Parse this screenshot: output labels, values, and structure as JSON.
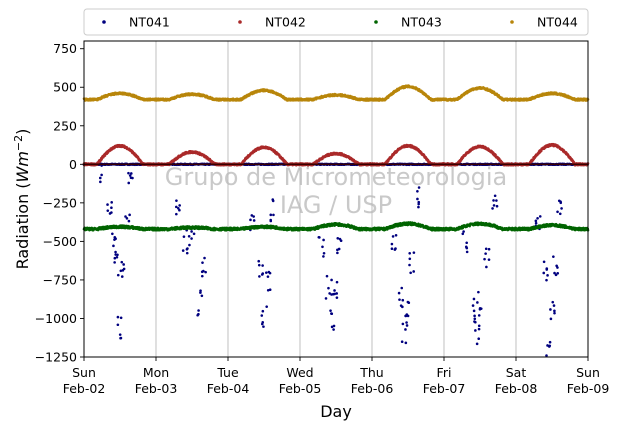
{
  "chart_data": {
    "type": "scatter",
    "xlabel": "Day",
    "ylabel_main": "Radiation (",
    "ylabel_unit": "Wm",
    "ylabel_exp": "−2",
    "ylabel_close": ")",
    "ylim": [
      -1250,
      800
    ],
    "yticks": [
      -1250,
      -1000,
      -750,
      -500,
      -250,
      0,
      250,
      500,
      750
    ],
    "ytick_labels": [
      "−1250",
      "−1000",
      "−750",
      "−500",
      "−250",
      "0",
      "250",
      "500",
      "750"
    ],
    "xlim": [
      0,
      7
    ],
    "xticks": [
      {
        "day": 0,
        "dow": "Sun",
        "date": "Feb-02"
      },
      {
        "day": 1,
        "dow": "Mon",
        "date": "Feb-03"
      },
      {
        "day": 2,
        "dow": "Tue",
        "date": "Feb-04"
      },
      {
        "day": 3,
        "dow": "Wed",
        "date": "Feb-05"
      },
      {
        "day": 4,
        "dow": "Thu",
        "date": "Feb-06"
      },
      {
        "day": 5,
        "dow": "Fri",
        "date": "Feb-07"
      },
      {
        "day": 6,
        "dow": "Sat",
        "date": "Feb-08"
      },
      {
        "day": 7,
        "dow": "Sun",
        "date": "Feb-09"
      }
    ],
    "grid": "vertical",
    "legend_position": "top",
    "watermark_lines": [
      "Grupo de Micrometeorologia",
      "IAG / USP"
    ],
    "series": [
      {
        "name": "NT041",
        "color": "#00007f",
        "baseline": 0,
        "points": [
          [
            0.25,
            -50
          ],
          [
            0.35,
            -300
          ],
          [
            0.4,
            -500
          ],
          [
            0.45,
            -650
          ],
          [
            0.5,
            -1050
          ],
          [
            0.55,
            -700
          ],
          [
            0.6,
            -350
          ],
          [
            0.65,
            -120
          ],
          [
            1.3,
            -300
          ],
          [
            1.4,
            -500
          ],
          [
            1.5,
            -450
          ],
          [
            1.6,
            -900
          ],
          [
            1.65,
            -650
          ],
          [
            2.35,
            -400
          ],
          [
            2.45,
            -650
          ],
          [
            2.5,
            -1000
          ],
          [
            2.55,
            -750
          ],
          [
            2.6,
            -300
          ],
          [
            3.3,
            -550
          ],
          [
            3.4,
            -800
          ],
          [
            3.45,
            -1000
          ],
          [
            3.5,
            -800
          ],
          [
            3.55,
            -500
          ],
          [
            4.3,
            -500
          ],
          [
            4.4,
            -850
          ],
          [
            4.45,
            -1100
          ],
          [
            4.5,
            -950
          ],
          [
            4.55,
            -650
          ],
          [
            4.65,
            -200
          ],
          [
            5.3,
            -500
          ],
          [
            5.4,
            -950
          ],
          [
            5.45,
            -1100
          ],
          [
            5.5,
            -900
          ],
          [
            5.6,
            -600
          ],
          [
            5.7,
            -250
          ],
          [
            6.3,
            -400
          ],
          [
            6.4,
            -700
          ],
          [
            6.45,
            -1200
          ],
          [
            6.5,
            -950
          ],
          [
            6.55,
            -650
          ],
          [
            6.6,
            -300
          ]
        ]
      },
      {
        "name": "NT042",
        "color": "#aa2a2a",
        "baseline": 0,
        "peaks": [
          [
            0.5,
            120
          ],
          [
            1.5,
            80
          ],
          [
            2.5,
            110
          ],
          [
            3.5,
            70
          ],
          [
            4.5,
            120
          ],
          [
            5.5,
            115
          ],
          [
            6.5,
            125
          ]
        ]
      },
      {
        "name": "NT043",
        "color": "#006400",
        "baseline": -420,
        "peaks": [
          [
            0.5,
            -405
          ],
          [
            1.5,
            -410
          ],
          [
            2.5,
            -405
          ],
          [
            3.5,
            -390
          ],
          [
            4.5,
            -385
          ],
          [
            5.5,
            -385
          ],
          [
            6.5,
            -395
          ]
        ]
      },
      {
        "name": "NT044",
        "color": "#b8860b",
        "baseline": 420,
        "peaks": [
          [
            0.5,
            460
          ],
          [
            1.5,
            455
          ],
          [
            2.5,
            480
          ],
          [
            3.5,
            450
          ],
          [
            4.5,
            505
          ],
          [
            5.5,
            495
          ],
          [
            6.5,
            460
          ]
        ]
      }
    ]
  }
}
